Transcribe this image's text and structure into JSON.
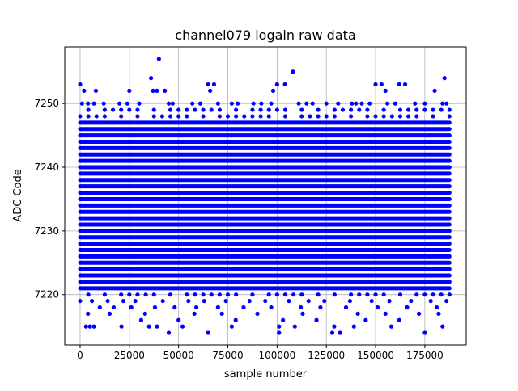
{
  "chart_data": {
    "type": "scatter",
    "title": "channel079 logain raw data",
    "xlabel": "sample number",
    "ylabel": "ADC Code",
    "xlim": [
      -7800,
      196000
    ],
    "ylim": [
      7212.1,
      7258.9
    ],
    "xticks": [
      0,
      25000,
      50000,
      75000,
      100000,
      125000,
      150000,
      175000
    ],
    "xtick_labels": [
      "0",
      "25000",
      "50000",
      "75000",
      "100000",
      "125000",
      "150000",
      "175000"
    ],
    "yticks": [
      7220,
      7230,
      7240,
      7250
    ],
    "ytick_labels": [
      "7220",
      "7230",
      "7240",
      "7250"
    ],
    "grid": true,
    "marker_color": "#0000ff",
    "sample_range": [
      0,
      187500
    ],
    "dense_band": {
      "from": 7221,
      "to": 7247
    },
    "series": [
      {
        "name": "",
        "points": [
          [
            0,
            7253
          ],
          [
            40000,
            7257
          ],
          [
            108000,
            7255
          ],
          [
            36000,
            7254
          ],
          [
            185000,
            7254
          ],
          [
            65000,
            7253
          ],
          [
            68000,
            7253
          ],
          [
            100000,
            7253
          ],
          [
            104000,
            7253
          ],
          [
            150000,
            7253
          ],
          [
            153000,
            7253
          ],
          [
            162000,
            7253
          ],
          [
            165000,
            7253
          ],
          [
            2000,
            7252
          ],
          [
            8000,
            7252
          ],
          [
            25000,
            7252
          ],
          [
            37000,
            7252
          ],
          [
            39000,
            7252
          ],
          [
            43000,
            7252
          ],
          [
            66000,
            7252
          ],
          [
            98000,
            7252
          ],
          [
            155000,
            7252
          ],
          [
            180000,
            7252
          ],
          [
            1000,
            7250
          ],
          [
            4000,
            7250
          ],
          [
            7000,
            7250
          ],
          [
            12000,
            7250
          ],
          [
            20000,
            7250
          ],
          [
            24000,
            7250
          ],
          [
            30000,
            7250
          ],
          [
            45000,
            7250
          ],
          [
            47000,
            7250
          ],
          [
            57000,
            7250
          ],
          [
            61000,
            7250
          ],
          [
            70000,
            7250
          ],
          [
            77000,
            7250
          ],
          [
            80000,
            7250
          ],
          [
            88000,
            7250
          ],
          [
            92000,
            7250
          ],
          [
            97000,
            7250
          ],
          [
            111000,
            7250
          ],
          [
            115000,
            7250
          ],
          [
            118000,
            7250
          ],
          [
            125000,
            7250
          ],
          [
            131000,
            7250
          ],
          [
            138000,
            7250
          ],
          [
            140000,
            7250
          ],
          [
            143000,
            7250
          ],
          [
            147000,
            7250
          ],
          [
            156000,
            7250
          ],
          [
            160000,
            7250
          ],
          [
            170000,
            7250
          ],
          [
            175000,
            7250
          ],
          [
            184000,
            7250
          ],
          [
            186000,
            7250
          ],
          [
            3000,
            7215
          ],
          [
            5000,
            7215
          ],
          [
            7000,
            7215
          ],
          [
            21000,
            7215
          ],
          [
            35000,
            7215
          ],
          [
            39000,
            7215
          ],
          [
            52000,
            7215
          ],
          [
            77000,
            7215
          ],
          [
            101000,
            7215
          ],
          [
            109000,
            7215
          ],
          [
            129000,
            7215
          ],
          [
            139000,
            7215
          ],
          [
            158000,
            7215
          ],
          [
            184000,
            7215
          ],
          [
            45000,
            7214
          ],
          [
            65000,
            7214
          ],
          [
            101000,
            7214
          ],
          [
            128000,
            7214
          ],
          [
            132000,
            7214
          ],
          [
            175000,
            7214
          ],
          [
            31000,
            7216
          ],
          [
            50000,
            7216
          ],
          [
            79000,
            7216
          ],
          [
            103000,
            7216
          ],
          [
            120000,
            7216
          ],
          [
            145000,
            7216
          ],
          [
            162000,
            7216
          ],
          [
            0,
            7219
          ],
          [
            6000,
            7219
          ],
          [
            14000,
            7219
          ],
          [
            22000,
            7219
          ],
          [
            28000,
            7219
          ],
          [
            42000,
            7219
          ],
          [
            55000,
            7219
          ],
          [
            63000,
            7219
          ],
          [
            74000,
            7219
          ],
          [
            86000,
            7219
          ],
          [
            94000,
            7219
          ],
          [
            106000,
            7219
          ],
          [
            116000,
            7219
          ],
          [
            124000,
            7219
          ],
          [
            137000,
            7219
          ],
          [
            148000,
            7219
          ],
          [
            157000,
            7219
          ],
          [
            168000,
            7219
          ],
          [
            178000,
            7219
          ],
          [
            186000,
            7219
          ],
          [
            10000,
            7218
          ],
          [
            17000,
            7218
          ],
          [
            26000,
            7218
          ],
          [
            38000,
            7218
          ],
          [
            48000,
            7218
          ],
          [
            59000,
            7218
          ],
          [
            70000,
            7218
          ],
          [
            83000,
            7218
          ],
          [
            97000,
            7218
          ],
          [
            112000,
            7218
          ],
          [
            122000,
            7218
          ],
          [
            135000,
            7218
          ],
          [
            151000,
            7218
          ],
          [
            166000,
            7218
          ],
          [
            181000,
            7218
          ],
          [
            4000,
            7217
          ],
          [
            15000,
            7217
          ],
          [
            33000,
            7217
          ],
          [
            58000,
            7217
          ],
          [
            72000,
            7217
          ],
          [
            90000,
            7217
          ],
          [
            113000,
            7217
          ],
          [
            141000,
            7217
          ],
          [
            155000,
            7217
          ],
          [
            172000,
            7217
          ],
          [
            182000,
            7217
          ]
        ]
      }
    ]
  }
}
